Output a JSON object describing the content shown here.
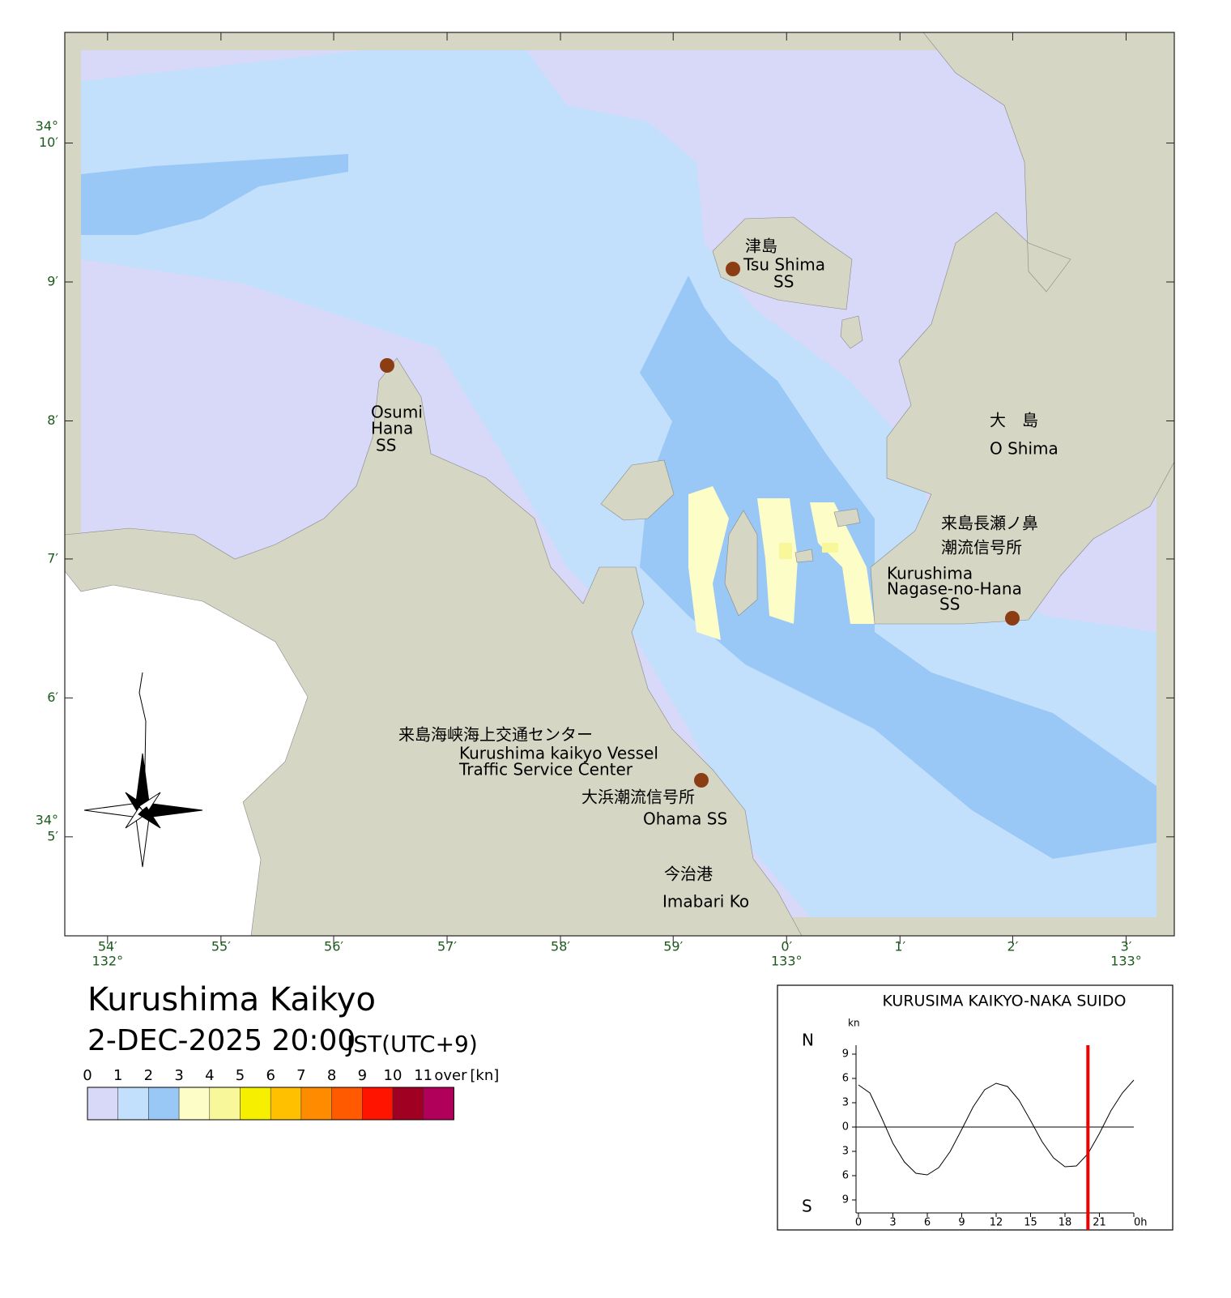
{
  "header": {
    "title": "Kurushima Kaikyo",
    "datetime": "2-DEC-2025 20:00",
    "timezone": "JST(UTC+9)"
  },
  "map": {
    "xlim": [
      132.8937,
      133.0571
    ],
    "ylim": [
      34.0714,
      34.18
    ],
    "xticks": [
      {
        "value": 132.9,
        "label": "54′"
      },
      {
        "value": 132.9167,
        "label": "55′"
      },
      {
        "value": 132.9333,
        "label": "56′"
      },
      {
        "value": 132.95,
        "label": "57′"
      },
      {
        "value": 132.9667,
        "label": "58′"
      },
      {
        "value": 132.9833,
        "label": "59′"
      },
      {
        "value": 133.0,
        "label": "0′"
      },
      {
        "value": 133.0167,
        "label": "1′"
      },
      {
        "value": 133.0333,
        "label": "2′"
      },
      {
        "value": 133.05,
        "label": "3′"
      }
    ],
    "x_degree_labels": [
      {
        "value": 132.9,
        "label": "132°"
      },
      {
        "value": 133.0,
        "label": "133°"
      },
      {
        "value": 133.05,
        "label": "133°"
      }
    ],
    "yticks": [
      {
        "value": 34.1667,
        "label": "10′"
      },
      {
        "value": 34.15,
        "label": "9′"
      },
      {
        "value": 34.1333,
        "label": "8′"
      },
      {
        "value": 34.1167,
        "label": "7′"
      },
      {
        "value": 34.1,
        "label": "6′"
      },
      {
        "value": 34.0833,
        "label": "5′"
      }
    ],
    "y_degree_labels": [
      {
        "value": 34.1667,
        "label": "34°"
      },
      {
        "value": 34.0833,
        "label": "34°"
      }
    ],
    "labels": {
      "tsushima_ja": "津島",
      "tsushima_en": "Tsu Shima",
      "tsushima_ss": "SS",
      "osumi_1": "Osumi",
      "osumi_2": "Hana",
      "osumi_3": "SS",
      "oshima_ja": "大　島",
      "oshima_en": "O Shima",
      "nagase_ja1": "来島長瀬ノ鼻",
      "nagase_ja2": "潮流信号所",
      "nagase_en1": "Kurushima",
      "nagase_en2": "Nagase-no-Hana",
      "nagase_en3": "SS",
      "center_ja": "来島海峡海上交通センター",
      "center_en1": "Kurushima kaikyo Vessel",
      "center_en2": "Traffic Service Center",
      "ohama_ja": "大浜潮流信号所",
      "ohama_en": "Ohama SS",
      "imabari_ja": "今治港",
      "imabari_en": "Imabari Ko"
    }
  },
  "colorbar": {
    "labels": [
      "0",
      "1",
      "2",
      "3",
      "4",
      "5",
      "6",
      "7",
      "8",
      "9",
      "10",
      "11"
    ],
    "over_label": "over",
    "unit": "[kn]",
    "colors": [
      "#d8d8f8",
      "#c2e0fc",
      "#9ac8f6",
      "#fdfdc8",
      "#f8f89a",
      "#f6f000",
      "#ffc000",
      "#ff8c00",
      "#ff5a00",
      "#ff1400",
      "#a00022",
      "#b0005a"
    ]
  },
  "chart_data": {
    "type": "line",
    "title": "KURUSIMA KAIKYO-NAKA SUIDO",
    "y_unit": "kn",
    "north_label": "N",
    "south_label": "S",
    "x": [
      0,
      1,
      2,
      3,
      4,
      5,
      6,
      7,
      8,
      9,
      10,
      11,
      12,
      13,
      14,
      15,
      16,
      17,
      18,
      19,
      20,
      21,
      22,
      23,
      24
    ],
    "series": [
      {
        "color": "#000000",
        "values": [
          5.2,
          4.2,
          1.2,
          -2.0,
          -4.3,
          -5.7,
          -5.9,
          -5.0,
          -3.0,
          -0.3,
          2.5,
          4.6,
          5.4,
          5.0,
          3.3,
          0.8,
          -1.8,
          -3.8,
          -4.9,
          -4.8,
          -3.3,
          -0.8,
          2.0,
          4.2,
          5.8
        ]
      }
    ],
    "xlim": [
      0,
      24
    ],
    "ylim": [
      -10.6,
      10.1
    ],
    "xticks": [
      0,
      3,
      6,
      9,
      12,
      15,
      18,
      21,
      {
        "value": 24,
        "label": "0h"
      }
    ],
    "yticks": [
      9,
      6,
      3,
      0,
      {
        "value": -3,
        "label": "3"
      },
      {
        "value": -6,
        "label": "6"
      },
      {
        "value": -9,
        "label": "9"
      }
    ],
    "current_time": 20,
    "current_time_color": "#ee0000"
  }
}
